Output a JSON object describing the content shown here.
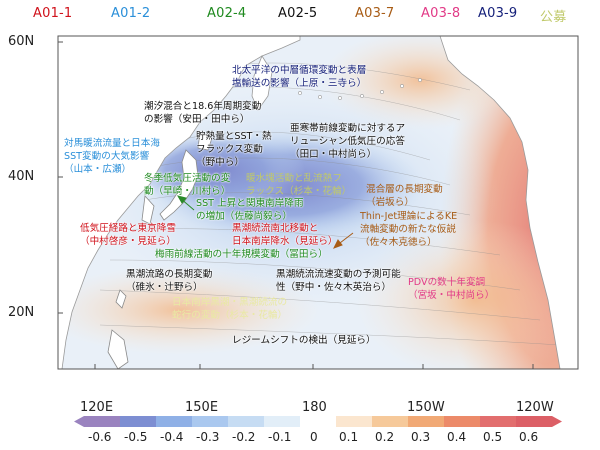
{
  "groups": [
    {
      "code": "A01-1",
      "color": "#d0121b"
    },
    {
      "code": "A01-2",
      "color": "#2a8fd9"
    },
    {
      "code": "A02-4",
      "color": "#1f8a1f"
    },
    {
      "code": "A02-5",
      "color": "#111111"
    },
    {
      "code": "A03-7",
      "color": "#a85c16"
    },
    {
      "code": "A03-8",
      "color": "#e23a87"
    },
    {
      "code": "A03-9",
      "color": "#15207a"
    },
    {
      "code": "公募",
      "color": "#c0c96a"
    }
  ],
  "axes": {
    "lat_ticks": [
      "60N",
      "40N",
      "20N"
    ],
    "lon_ticks": [
      "120E",
      "150E",
      "180",
      "150W",
      "120W"
    ]
  },
  "colorbar": {
    "ticks": [
      "-0.6",
      "-0.5",
      "-0.4",
      "-0.3",
      "-0.2",
      "-0.1",
      "0",
      "0.1",
      "0.2",
      "0.3",
      "0.4",
      "0.5",
      "0.6"
    ],
    "colors": [
      "#9a83bf",
      "#7d8ed2",
      "#8fb0e6",
      "#aac8ef",
      "#c6dcf3",
      "#e2eef8",
      "#ffffff",
      "#fbe6cf",
      "#f6c99a",
      "#f1a975",
      "#ec8a69",
      "#e26e6e",
      "#dc5f66"
    ]
  },
  "annotations": {
    "a1": {
      "lines": [
        "北太平洋の中層循環変動と表層",
        "塩輸送の影響（上原・三寺ら）"
      ],
      "color_group": "A03-9"
    },
    "a2": {
      "lines": [
        "潮汐混合と18.6年周期変動",
        "の影響（安田・田中ら）"
      ],
      "color_group": "A02-5"
    },
    "a3": {
      "lines": [
        "亜寒帯前線変動に対するア",
        "リューシャン低気圧の応答",
        "（田口・中村尚ら）"
      ],
      "color_group": "A02-5"
    },
    "a4": {
      "lines": [
        "対馬暖流流量と日本海",
        "SST変動の大気影響",
        "（山本・広瀬）"
      ],
      "color_group": "A01-2"
    },
    "a5": {
      "lines": [
        "貯熱量とSST・熱",
        "フラックス変動",
        "（野中ら）"
      ],
      "color_group": "A02-5"
    },
    "a6": {
      "lines": [
        "冬季低気圧活動の変",
        "動（早崎・川村ら）"
      ],
      "color_group": "A02-4"
    },
    "a7": {
      "lines": [
        "暖水塊活動と乱流熱フ",
        "ラックス（杉本・花輪）"
      ],
      "color_group": "公募"
    },
    "a8": {
      "lines": [
        "混合層の長期変動",
        "（岩坂ら）"
      ],
      "color_group": "A03-7"
    },
    "a9": {
      "lines": [
        "SST 上昇と関東南岸降雨",
        "の増加（佐藤尚毅ら）"
      ],
      "color_group": "A02-4"
    },
    "a10": {
      "lines": [
        "Thin-Jet理論によるKE",
        "流軸変動の新たな仮説",
        "（佐々木克徳ら）"
      ],
      "color_group": "A03-7"
    },
    "a11": {
      "lines": [
        "低気圧経路と東京降雪",
        "（中村啓彦・見延ら）"
      ],
      "color_group": "A01-1"
    },
    "a12": {
      "lines": [
        "黒潮続流南北移動と",
        "日本南岸降水（見延ら）"
      ],
      "color_group": "A01-1"
    },
    "a13": {
      "lines": [
        "梅雨前線活動の十年規模変動（冨田ら）"
      ],
      "color_group": "A02-4"
    },
    "a14": {
      "lines": [
        "黒潮流路の長期変動",
        "（碓氷・辻野ら）"
      ],
      "color_group": "A02-5"
    },
    "a15": {
      "lines": [
        "黒潮続流流速変動の予測可能",
        "性（野中・佐々木英治ら）"
      ],
      "color_group": "A02-5"
    },
    "a16": {
      "lines": [
        "PDVの数十年変調",
        "（宮坂・中村尚ら）"
      ],
      "color_group": "A03-8"
    },
    "a17": {
      "lines": [
        "日本南岸黒潮・黒潮続流の",
        "蛇行の変動（杉本・花輪）"
      ],
      "color_group": "公募"
    },
    "a18": {
      "lines": [
        "レジームシフトの検出（見延ら）"
      ],
      "color_group": "A02-5"
    }
  },
  "features": {
    "continent_color": "#ffffff",
    "ocean_base": "#e9f0f8"
  }
}
